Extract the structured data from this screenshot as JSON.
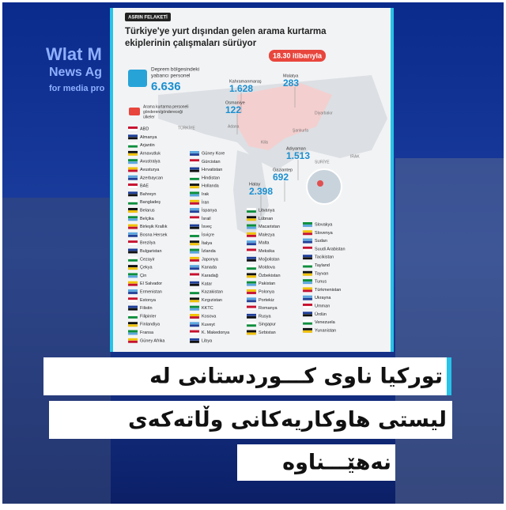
{
  "logo": {
    "name": "Wlat M",
    "line2": "News Ag",
    "line3": "for media pro"
  },
  "infographic": {
    "badge": "ASRIN FELAKETİ",
    "title_lines": [
      "Türkiye'ye yurt dışından gelen arama kurtarma",
      "ekiplerinin çalışmaları sürüyor"
    ],
    "time": "18.30 itibarıyla",
    "total_label_lines": [
      "Deprem bölgesindeki",
      "yabancı personel"
    ],
    "total": "6.636",
    "countries_label_lines": [
      "Arama kurtarma personeli",
      "gönderen/göndereceği",
      "ülkeler"
    ],
    "provinces": [
      {
        "name": "Kahramanmaraş",
        "value": "1.628"
      },
      {
        "name": "Malatya",
        "value": "283"
      },
      {
        "name": "Osmaniye",
        "value": "122"
      },
      {
        "name": "Adıyaman",
        "value": "1.513"
      },
      {
        "name": "Gaziantep",
        "value": "692"
      },
      {
        "name": "Hatay",
        "value": "2.398"
      }
    ],
    "map_labels": [
      "Adana",
      "Kilis",
      "Şanlıurfa",
      "Diyarbakır",
      "TÜRKİYE",
      "SURİYE",
      "IRAK"
    ],
    "countries": [
      [
        "ABD",
        "Almanya",
        "Arjantin",
        "Arnavutluk",
        "Avustralya",
        "Avusturya",
        "Azerbaycan",
        "BAE",
        "Bahreyn",
        "Bangladeş",
        "Belarus",
        "Belçika",
        "Birleşik Krallık",
        "Bosna Hersek",
        "Brezilya",
        "Bulgaristan",
        "Cezayir",
        "Çekya",
        "Çin",
        "El Salvador",
        "Ermenistan",
        "Estonya",
        "Filistin",
        "Filipinler",
        "Finlandiya",
        "Fransa",
        "Güney Afrika"
      ],
      [
        "Güney Kore",
        "Gürcistan",
        "Hırvatistan",
        "Hindistan",
        "Hollanda",
        "Irak",
        "İran",
        "İspanya",
        "İsrail",
        "İsveç",
        "İsviçre",
        "İtalya",
        "İzlanda",
        "Japonya",
        "Kanada",
        "Karadağ",
        "Katar",
        "Kazakistan",
        "Kırgızistan",
        "KKTC",
        "Kosova",
        "Kuveyt",
        "K. Makedonya",
        "Libya"
      ],
      [
        "Litvanya",
        "Lübnan",
        "Macaristan",
        "Malezya",
        "Malta",
        "Meksika",
        "Moğolistan",
        "Moldova",
        "Özbekistan",
        "Pakistan",
        "Polonya",
        "Portekiz",
        "Romanya",
        "Rusya",
        "Singapur",
        "Sırbistan"
      ],
      [
        "Slovakya",
        "Slovenya",
        "Sudan",
        "Suudi Arabistan",
        "Tacikistan",
        "Tayland",
        "Tayvan",
        "Tunus",
        "Türkmenistan",
        "Ukrayna",
        "Umman",
        "Ürdün",
        "Venezuela",
        "Yunanistan"
      ]
    ]
  },
  "headline": {
    "lines": [
      "تورکیا ناوی کـــوردستانی لە",
      "لیستی هاوکاریەکانی وڵاتەکەی",
      "نەهێـــناوە"
    ]
  }
}
